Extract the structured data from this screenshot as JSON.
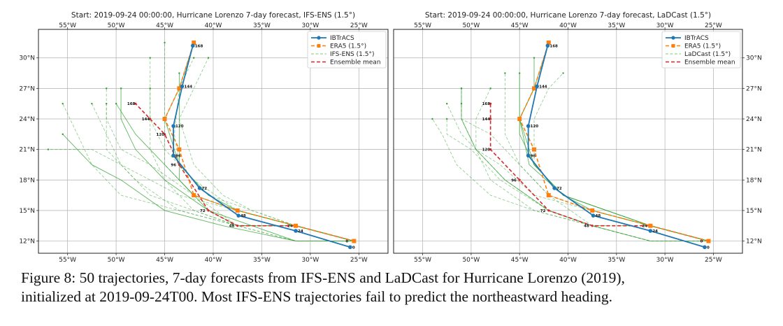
{
  "chart_data": [
    {
      "type": "line",
      "title": "Start: 2019-09-24 00:00:00, Hurricane Lorenzo 7-day forecast, IFS-ENS (1.5°)",
      "xlim": [
        -58,
        -22
      ],
      "ylim": [
        10.8,
        32.8
      ],
      "x_ticks": [
        {
          "value": -55,
          "label": "55°W"
        },
        {
          "value": -50,
          "label": "50°W"
        },
        {
          "value": -45,
          "label": "45°W"
        },
        {
          "value": -40,
          "label": "40°W"
        },
        {
          "value": -35,
          "label": "35°W"
        },
        {
          "value": -30,
          "label": "30°W"
        },
        {
          "value": -25,
          "label": "25°W"
        }
      ],
      "y_ticks": [
        {
          "value": 12,
          "label": "12°N"
        },
        {
          "value": 15,
          "label": "15°N"
        },
        {
          "value": 18,
          "label": "18°N"
        },
        {
          "value": 21,
          "label": "21°N"
        },
        {
          "value": 24,
          "label": "24°N"
        },
        {
          "value": 27,
          "label": "27°N"
        },
        {
          "value": 30,
          "label": "30°N"
        }
      ],
      "grid": true,
      "legend_position": "top-right",
      "legend": [
        "IBTrACS",
        "ERA5 (1.5°)",
        "IFS-ENS (1.5°)",
        "Ensemble mean"
      ],
      "series": [
        {
          "name": "IBTrACS",
          "x": [
            -25.9,
            -31.5,
            -37.4,
            -41.4,
            -44.1,
            -44.1,
            -43.2,
            -42.1
          ],
          "y": [
            11.4,
            13.0,
            14.5,
            17.2,
            20.4,
            23.3,
            27.2,
            31.2
          ],
          "labels": [
            "0",
            "24",
            "48",
            "72",
            "96",
            "120",
            "144",
            "168"
          ]
        },
        {
          "name": "ERA5 (1.5°)",
          "x": [
            -25.5,
            -31.5,
            -37.5,
            -42.0,
            -43.5,
            -45.0,
            -43.5,
            -42.0
          ],
          "y": [
            12.0,
            13.5,
            15.0,
            16.5,
            21.0,
            24.0,
            27.0,
            31.5
          ]
        },
        {
          "name": "Ensemble mean",
          "x": [
            -25.5,
            -31.5,
            -37.5,
            -40.5,
            -43.5,
            -45.0,
            -46.5,
            -48.0
          ],
          "y": [
            12.0,
            13.5,
            13.5,
            15.0,
            19.5,
            22.5,
            24.0,
            25.5
          ],
          "labels": [
            "0",
            "24",
            "48",
            "72",
            "96",
            "120",
            "144",
            "168"
          ]
        }
      ],
      "ensemble": {
        "name": "IFS-ENS (1.5°)",
        "members": [
          {
            "x": [
              -25.5,
              -31.5,
              -37.5,
              -40.5,
              -43.5,
              -45,
              -43.5,
              -42
            ],
            "y": [
              12,
              13.5,
              15,
              16.5,
              19.5,
              24,
              27,
              31.5
            ]
          },
          {
            "x": [
              -25.5,
              -31.5,
              -36,
              -39,
              -42,
              -43.5,
              -42,
              -40.5
            ],
            "y": [
              12,
              13.5,
              15,
              16.5,
              19.5,
              24,
              27,
              30
            ]
          },
          {
            "x": [
              -25.5,
              -31.5,
              -37.5,
              -42,
              -45,
              -45,
              -45,
              -45
            ],
            "y": [
              12,
              13.5,
              15,
              16.5,
              19.5,
              24,
              28.5,
              31.5
            ]
          },
          {
            "x": [
              -25.5,
              -31.5,
              -37.5,
              -40.5,
              -43.5,
              -43.5,
              -43.5,
              -43.5
            ],
            "y": [
              12,
              13.5,
              13.5,
              15,
              18,
              22.5,
              25.5,
              28.5
            ]
          },
          {
            "x": [
              -25.5,
              -31.5,
              -37.5,
              -42,
              -45,
              -46.5,
              -46.5,
              -46.5
            ],
            "y": [
              12,
              13.5,
              13.5,
              15,
              18,
              21,
              24,
              27
            ]
          },
          {
            "x": [
              -25.5,
              -31.5,
              -37.5,
              -43.5,
              -48,
              -51,
              -51,
              -51
            ],
            "y": [
              12,
              12,
              13.5,
              15,
              18,
              21,
              24,
              27
            ]
          },
          {
            "x": [
              -25.5,
              -31.5,
              -39,
              -45,
              -49.5,
              -52.5,
              -54,
              -55.5
            ],
            "y": [
              12,
              12,
              13.5,
              15,
              18,
              19.5,
              21,
              22.5
            ]
          },
          {
            "x": [
              -25.5,
              -31.5,
              -37.5,
              -42,
              -46.5,
              -49.5,
              -51,
              -52.5
            ],
            "y": [
              12,
              13.5,
              13.5,
              15,
              16.5,
              19.5,
              22.5,
              25.5
            ]
          },
          {
            "x": [
              -25.5,
              -31.5,
              -37.5,
              -43.5,
              -49.5,
              -52.5,
              -54,
              -55.5
            ],
            "y": [
              12,
              13.5,
              13.5,
              15,
              16.5,
              19.5,
              22.5,
              25.5
            ]
          },
          {
            "x": [
              -25.5,
              -31.5,
              -36,
              -40.5,
              -45,
              -48,
              -49.5,
              -49.5
            ],
            "y": [
              12,
              12,
              13.5,
              15,
              18,
              21,
              24,
              27
            ]
          },
          {
            "x": [
              -25.5,
              -31.5,
              -37.5,
              -42,
              -45,
              -46.5,
              -46.5,
              -46.5
            ],
            "y": [
              12,
              13.5,
              15,
              18,
              21,
              24,
              27,
              30
            ]
          },
          {
            "x": [
              -25.5,
              -31.5,
              -36,
              -40.5,
              -43.5,
              -44,
              -43.5,
              -42
            ],
            "y": [
              12,
              13.5,
              15,
              16.5,
              19.5,
              22.5,
              27,
              30
            ]
          },
          {
            "x": [
              -25.5,
              -31.5,
              -37.5,
              -42,
              -45,
              -48,
              -50,
              -50
            ],
            "y": [
              12,
              13.5,
              15,
              16.5,
              19.5,
              22.5,
              25.5,
              25.5
            ]
          },
          {
            "x": [
              -25.5,
              -31.5,
              -37.5,
              -42,
              -46.5,
              -49.5,
              -51,
              -51
            ],
            "y": [
              12,
              12,
              13.5,
              16.5,
              19.5,
              21,
              24,
              25.5
            ]
          },
          {
            "x": [
              -25.5,
              -31.5,
              -37.5,
              -43.5,
              -46.5,
              -49.5,
              -52.5,
              -57
            ],
            "y": [
              12,
              13.5,
              15,
              16.5,
              18,
              19.5,
              21,
              21
            ]
          }
        ]
      }
    },
    {
      "type": "line",
      "title": "Start: 2019-09-24 00:00:00, Hurricane Lorenzo 7-day forecast, LaDCast (1.5°)",
      "xlim": [
        -58,
        -22
      ],
      "ylim": [
        10.8,
        32.8
      ],
      "x_ticks": [
        {
          "value": -55,
          "label": "55°W"
        },
        {
          "value": -50,
          "label": "50°W"
        },
        {
          "value": -45,
          "label": "45°W"
        },
        {
          "value": -40,
          "label": "40°W"
        },
        {
          "value": -35,
          "label": "35°W"
        },
        {
          "value": -30,
          "label": "30°W"
        },
        {
          "value": -25,
          "label": "25°W"
        }
      ],
      "y_ticks": [
        {
          "value": 12,
          "label": "12°N"
        },
        {
          "value": 15,
          "label": "15°N"
        },
        {
          "value": 18,
          "label": "18°N"
        },
        {
          "value": 21,
          "label": "21°N"
        },
        {
          "value": 24,
          "label": "24°N"
        },
        {
          "value": 27,
          "label": "27°N"
        },
        {
          "value": 30,
          "label": "30°N"
        }
      ],
      "grid": true,
      "legend_position": "top-right",
      "legend": [
        "IBTrACS",
        "ERA5 (1.5°)",
        "LaDCast (1.5°)",
        "Ensemble mean"
      ],
      "series": [
        {
          "name": "IBTrACS",
          "x": [
            -25.9,
            -31.5,
            -37.4,
            -41.4,
            -44.1,
            -44.1,
            -43.2,
            -42.1
          ],
          "y": [
            11.4,
            13.0,
            14.5,
            17.2,
            20.4,
            23.3,
            27.2,
            31.2
          ],
          "labels": [
            "0",
            "24",
            "48",
            "72",
            "96",
            "120",
            "144",
            "168"
          ]
        },
        {
          "name": "ERA5 (1.5°)",
          "x": [
            -25.5,
            -31.5,
            -37.5,
            -42.0,
            -43.5,
            -45.0,
            -43.5,
            -42.0
          ],
          "y": [
            12.0,
            13.5,
            15.0,
            16.5,
            21.0,
            24.0,
            27.0,
            31.5
          ]
        },
        {
          "name": "Ensemble mean",
          "x": [
            -25.5,
            -31.5,
            -37.5,
            -42.0,
            -45.0,
            -48.0,
            -48.0,
            -48.0
          ],
          "y": [
            12.0,
            13.5,
            13.5,
            15.0,
            18.0,
            21.0,
            24.0,
            25.5
          ],
          "labels": [
            "0",
            "24",
            "48",
            "72",
            "96",
            "120",
            "144",
            "168"
          ]
        }
      ],
      "ensemble": {
        "name": "LaDCast (1.5°)",
        "members": [
          {
            "x": [
              -25.5,
              -31.5,
              -37.5,
              -40.5,
              -43.5,
              -45,
              -43.5,
              -42
            ],
            "y": [
              12,
              13.5,
              15,
              16.5,
              19.5,
              24,
              27,
              31.5
            ]
          },
          {
            "x": [
              -25.5,
              -31.5,
              -36,
              -40.5,
              -43.5,
              -43.5,
              -42,
              -40.5
            ],
            "y": [
              12,
              13.5,
              15,
              16.5,
              19.5,
              24,
              27,
              28.5
            ]
          },
          {
            "x": [
              -25.5,
              -31.5,
              -37.5,
              -42,
              -45,
              -46.5,
              -46.5,
              -46.5
            ],
            "y": [
              12,
              13.5,
              15,
              16.5,
              19.5,
              22.5,
              25.5,
              28.5
            ]
          },
          {
            "x": [
              -25.5,
              -31.5,
              -37.5,
              -42,
              -46.5,
              -49.5,
              -51,
              -51
            ],
            "y": [
              12,
              12,
              13.5,
              15,
              18,
              21,
              24,
              27
            ]
          },
          {
            "x": [
              -25.5,
              -31.5,
              -37.5,
              -43.5,
              -48,
              -51.5,
              -53,
              -54
            ],
            "y": [
              12,
              12,
              13.5,
              15,
              16.5,
              19.5,
              22.5,
              24
            ]
          },
          {
            "x": [
              -25.5,
              -31.5,
              -37.5,
              -42,
              -46.5,
              -49.5,
              -51,
              -52.5
            ],
            "y": [
              12,
              13.5,
              13.5,
              15,
              18,
              21,
              22.5,
              25.5
            ]
          },
          {
            "x": [
              -25.5,
              -31.5,
              -36,
              -40.5,
              -43.5,
              -45,
              -45,
              -45
            ],
            "y": [
              12,
              13.5,
              15,
              16.5,
              19.5,
              22.5,
              25.5,
              28.5
            ]
          },
          {
            "x": [
              -25.5,
              -31.5,
              -37.5,
              -43.5,
              -48,
              -49.5,
              -49.5,
              -48
            ],
            "y": [
              12,
              12,
              13.5,
              15,
              18,
              21,
              24,
              27
            ]
          },
          {
            "x": [
              -25.5,
              -31.5,
              -37.5,
              -42,
              -45,
              -48,
              -51,
              -51
            ],
            "y": [
              12,
              13.5,
              13.5,
              16.5,
              19.5,
              22.5,
              24,
              25.5
            ]
          },
          {
            "x": [
              -25.5,
              -31.5,
              -36,
              -40.5,
              -44,
              -45,
              -43.5,
              -43.5
            ],
            "y": [
              12,
              13.5,
              15,
              16.5,
              19.5,
              24,
              27,
              30
            ]
          },
          {
            "x": [
              -25.5,
              -31.5,
              -37.5,
              -42,
              -47,
              -50,
              -52.5,
              -52.5
            ],
            "y": [
              12,
              12,
              13.5,
              15,
              18,
              21,
              22.5,
              24
            ]
          },
          {
            "x": [
              -25.5,
              -31.5,
              -37.5,
              -43.5,
              -47,
              -49.5,
              -51,
              -51
            ],
            "y": [
              12,
              13.5,
              15,
              16.5,
              19.5,
              21,
              24,
              27
            ]
          }
        ]
      }
    }
  ],
  "caption": {
    "line1": "Figure 8: 50 trajectories, 7-day forecasts from IFS-ENS and LaDCast for Hurricane Lorenzo (2019),",
    "line2": "initialized at 2019-09-24T00. Most IFS-ENS trajectories fail to predict the northeastward heading."
  },
  "colors": {
    "ibtracs": "#1f77b4",
    "era5": "#ff7f0e",
    "ensemble_member": "#2ca02c",
    "ensemble_mean": "#d62728",
    "grid": "#b0b0b0"
  }
}
